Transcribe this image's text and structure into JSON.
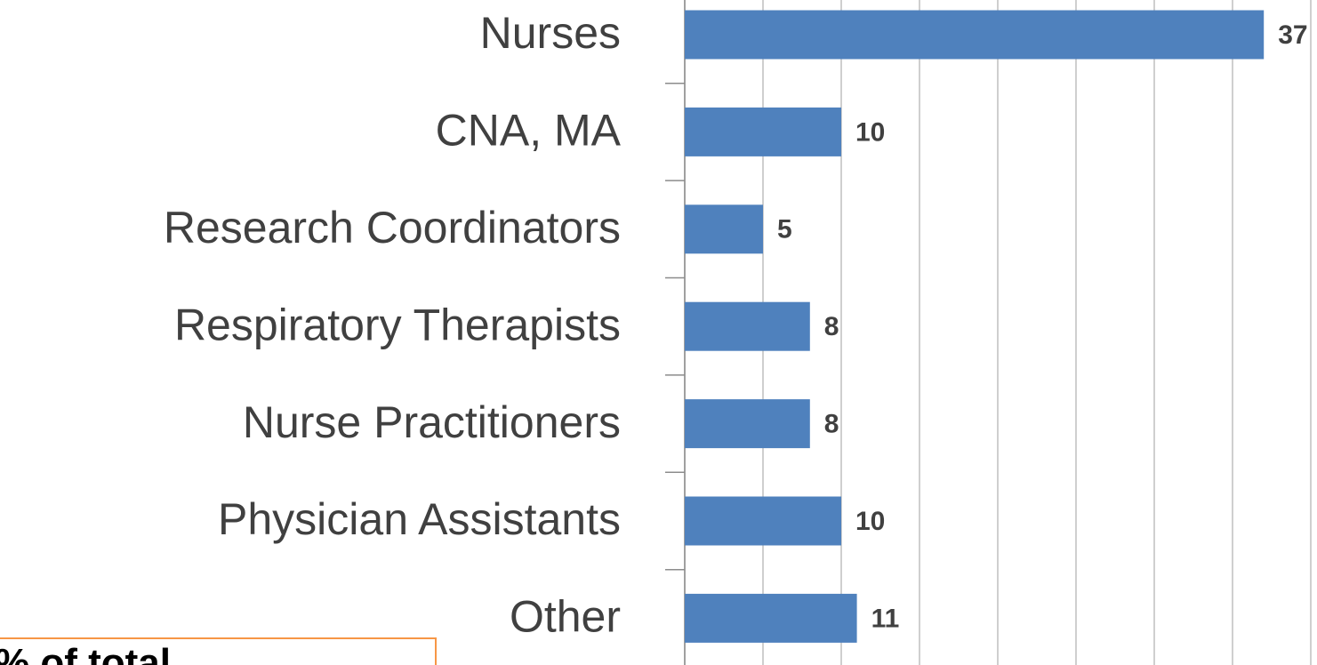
{
  "chart_data": {
    "type": "bar",
    "orientation": "horizontal",
    "categories": [
      "Nurses",
      "CNA, MA",
      "Research Coordinators",
      "Respiratory Therapists",
      "Nurse Practitioners",
      "Physician Assistants",
      "Other"
    ],
    "values": [
      37,
      10,
      5,
      8,
      8,
      10,
      11
    ],
    "color": "#4f81bd",
    "xlim": [
      0,
      40
    ],
    "xticks": [
      0,
      5,
      10,
      15,
      20,
      25,
      30,
      35,
      40
    ],
    "grid": true,
    "annotation": "% of total"
  }
}
